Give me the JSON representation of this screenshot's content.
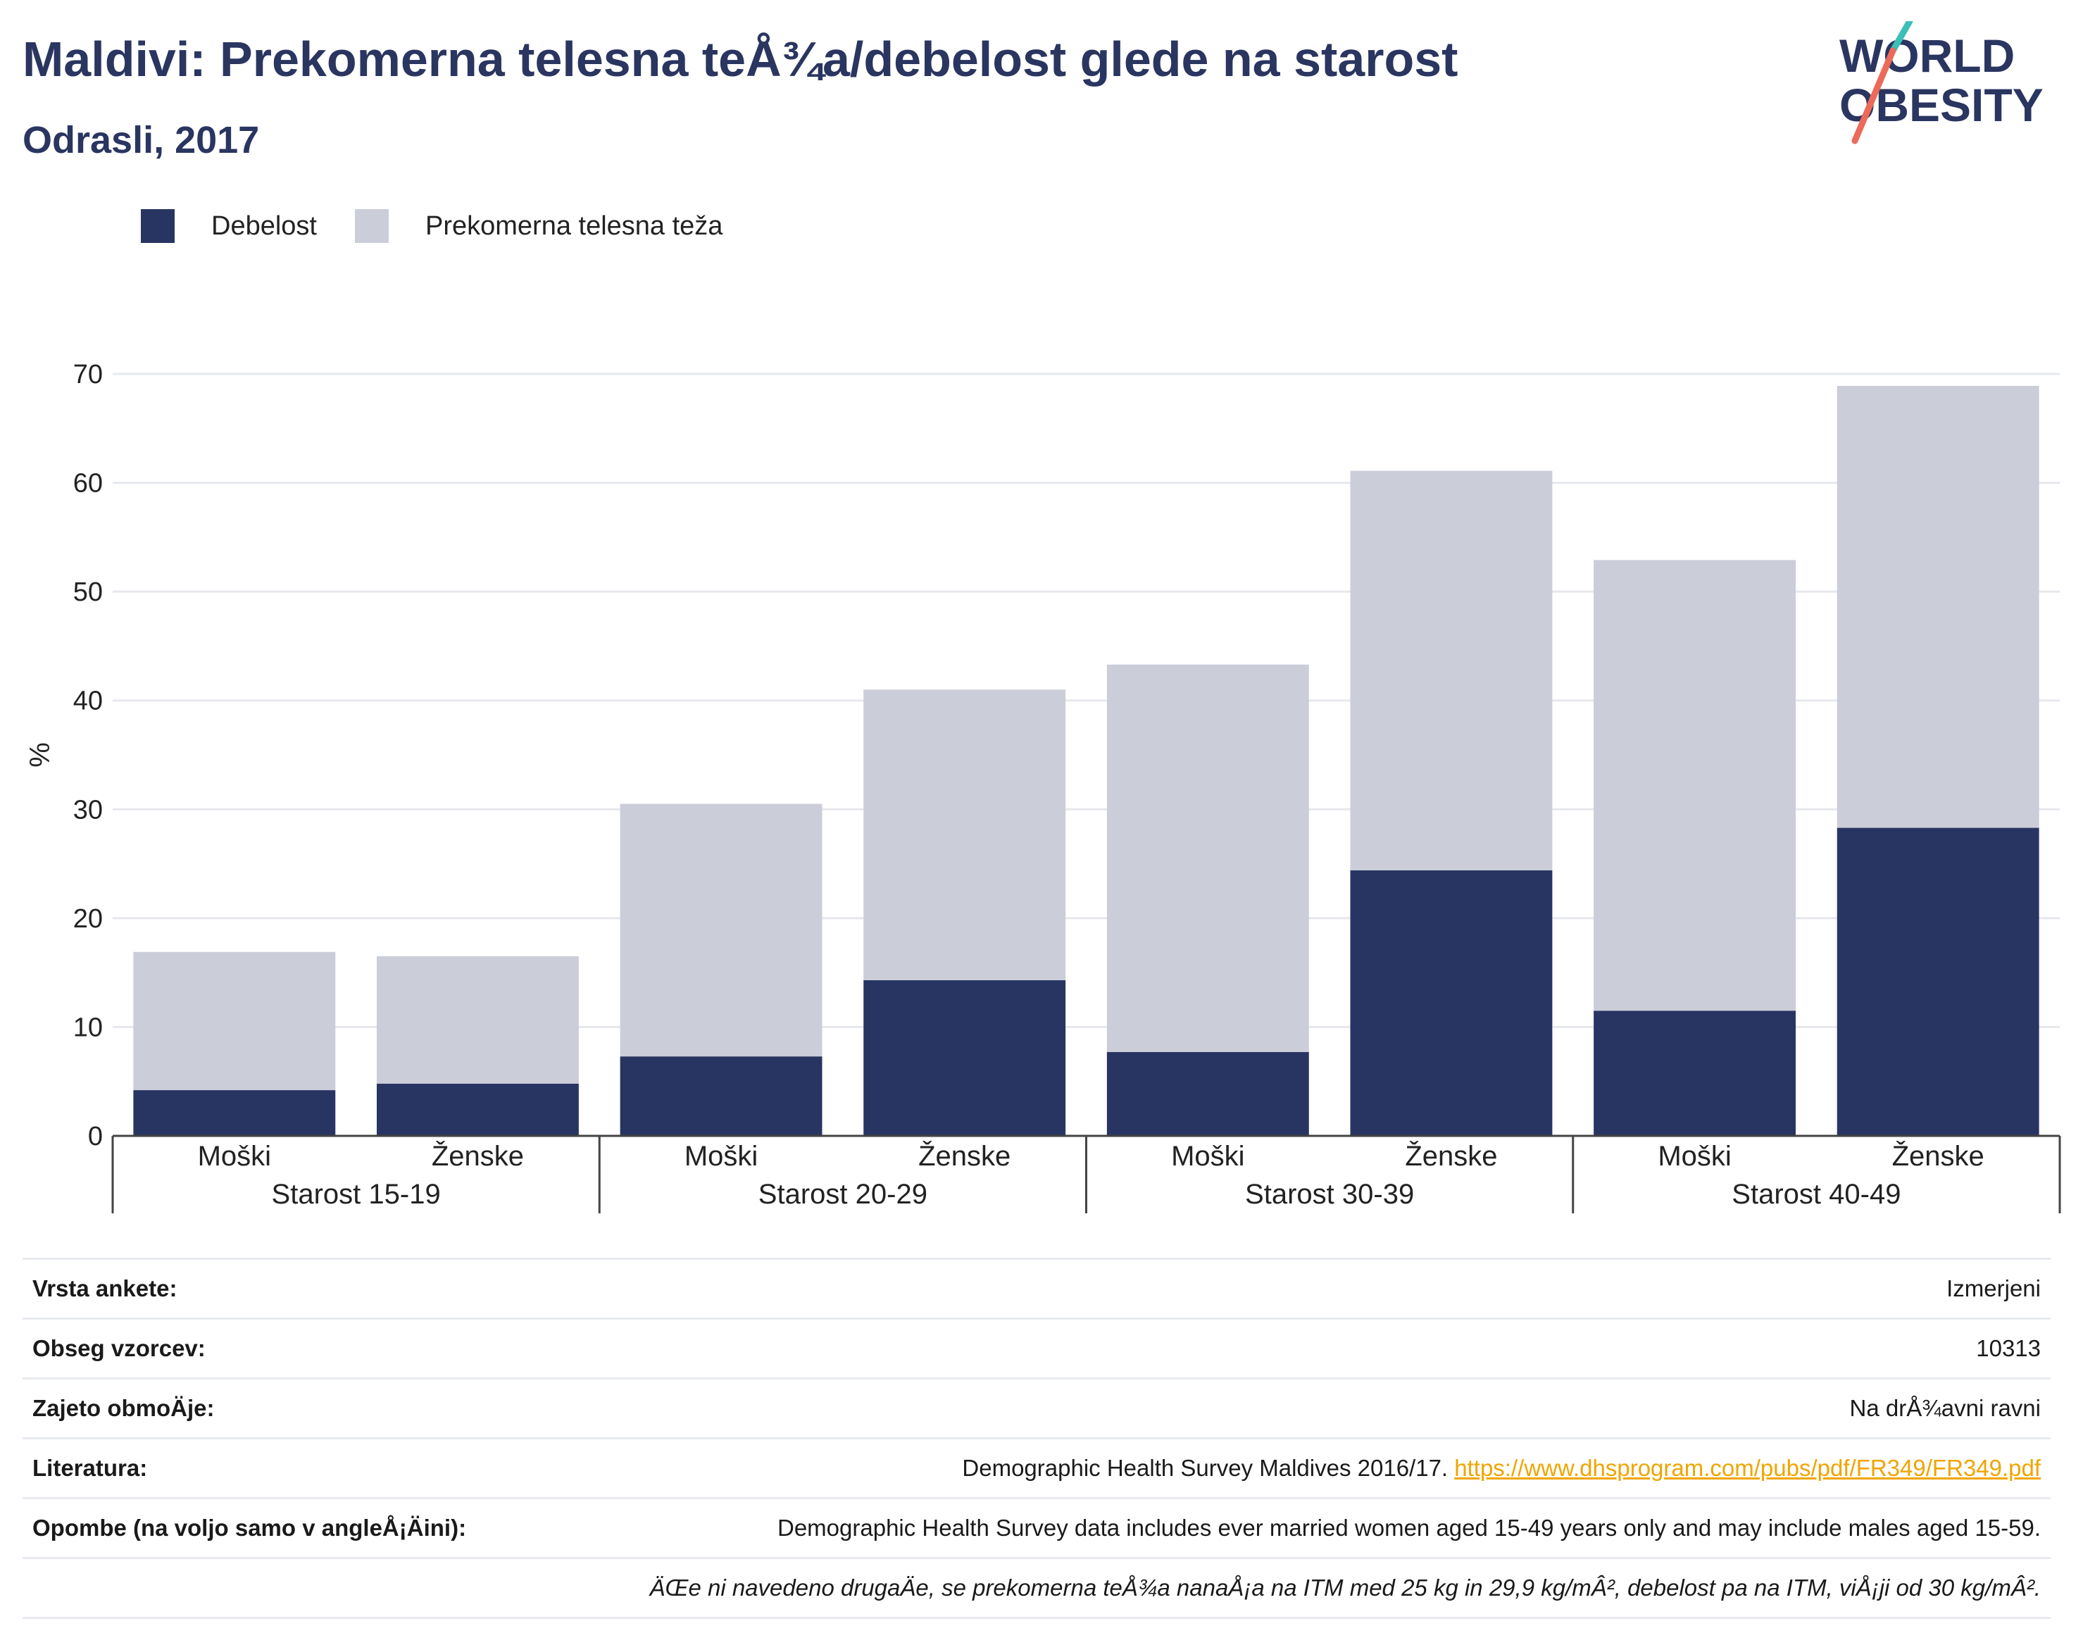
{
  "header": {
    "title": "Maldivi: Prekomerna telesna teÅ¾a/debelost glede na starost",
    "subtitle": "Odrasli, 2017",
    "logo_line1": "WORLD",
    "logo_line2": "OBESITY"
  },
  "legend": [
    {
      "label": "Debelost",
      "color": "#283562"
    },
    {
      "label": "Prekomerna telesna teža",
      "color": "#cbcdd9"
    }
  ],
  "chart_data": {
    "type": "bar",
    "stacked": true,
    "ylabel": "%",
    "ylim": [
      0,
      70
    ],
    "yticks": [
      0,
      10,
      20,
      30,
      40,
      50,
      60,
      70
    ],
    "grid": true,
    "legend_position": "top-left",
    "groups": [
      "Starost 15-19",
      "Starost 20-29",
      "Starost 30-39",
      "Starost 40-49"
    ],
    "categories": [
      "Moški",
      "Ženske",
      "Moški",
      "Ženske",
      "Moški",
      "Ženske",
      "Moški",
      "Ženske"
    ],
    "series": [
      {
        "name": "Debelost",
        "color": "#283562",
        "values": [
          4.2,
          4.8,
          7.3,
          14.3,
          7.7,
          24.4,
          11.5,
          28.3
        ]
      },
      {
        "name": "Prekomerna telesna teža",
        "color": "#cbcdd9",
        "values": [
          12.7,
          11.7,
          23.2,
          26.7,
          35.6,
          36.7,
          41.4,
          40.6
        ]
      }
    ]
  },
  "info": {
    "rows": [
      {
        "label": "Vrsta ankete:",
        "value": "Izmerjeni"
      },
      {
        "label": "Obseg vzorcev:",
        "value": "10313"
      },
      {
        "label": "Zajeto obmoÄje:",
        "value": "Na drÅ¾avni ravni"
      },
      {
        "label": "Literatura:",
        "value": "Demographic Health Survey Maldives 2016/17.",
        "link": "https://www.dhsprogram.com/pubs/pdf/FR349/FR349.pdf"
      },
      {
        "label": "Opombe (na voljo samo v angleÅ¡Äini):",
        "value": "Demographic Health Survey data includes ever married women aged 15-49 years only and may include males aged 15-59."
      }
    ],
    "note": "ÄŒe ni navedeno drugaÄe, se prekomerna teÅ¾a nanaÅ¡a na ITM med 25 kg in 29,9 kg/mÂ², debelost pa na ITM, viÅ¡ji od 30 kg/mÂ²."
  }
}
